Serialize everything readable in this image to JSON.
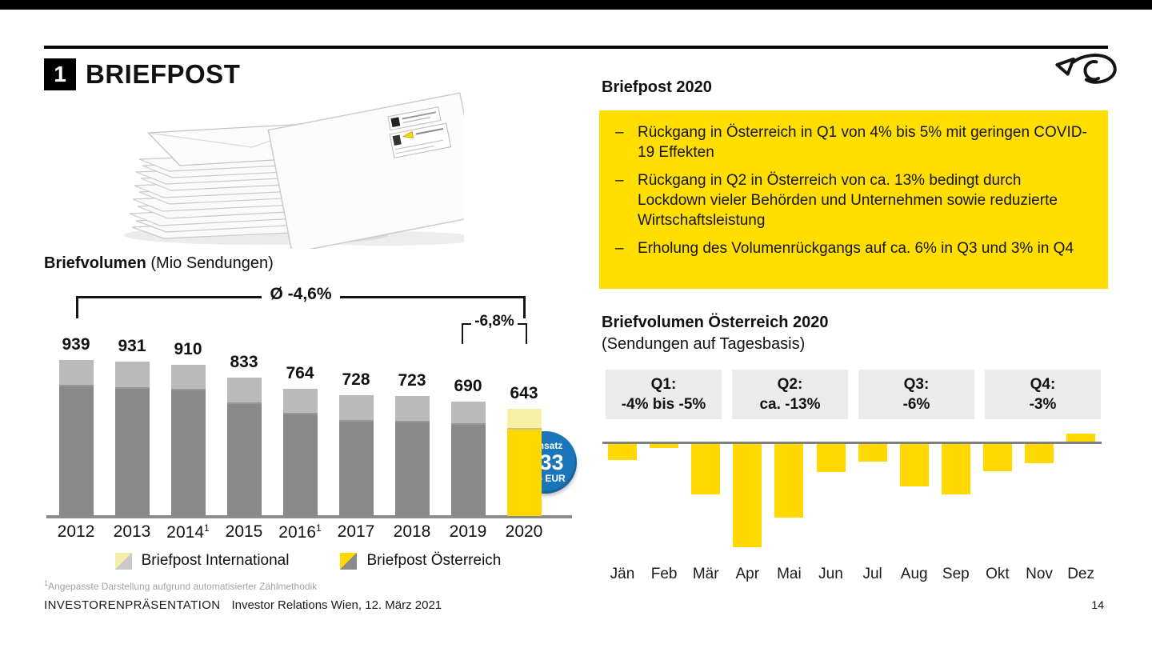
{
  "header": {
    "badge_number": "1",
    "title": "BRIEFPOST",
    "logo": "oesterreichische-post-horn-logo"
  },
  "left": {
    "chart_title_bold": "Briefvolumen",
    "chart_title_rest": " (Mio Sendungen)",
    "avg_bracket_label": "Ø -4,6%",
    "recent_bracket_label": "-6,8%",
    "revenue_badge": {
      "line1": "Umsatz",
      "value": "733",
      "line3": "Mio EUR"
    },
    "legend": [
      {
        "label": "Briefpost International",
        "swatch": [
          "#f3eda6",
          "#c9c9c9"
        ]
      },
      {
        "label": "Briefpost Österreich",
        "swatch": [
          "#ffd800",
          "#8a8a8a"
        ]
      }
    ],
    "footnote_sup": "1",
    "footnote": "Angepasste Darstellung aufgrund automatisierter Zählmethodik",
    "footer_left": "INVESTORENPRÄSENTATION",
    "footer_right": "Investor Relations Wien, 12. März 2021"
  },
  "right": {
    "box_title": "Briefpost 2020",
    "bullets": [
      "Rückgang in Österreich in Q1 von 4% bis 5% mit geringen COVID-19 Effekten",
      "Rückgang in Q2 in Österreich von ca. 13% bedingt durch Lockdown vieler Behörden und Unternehmen sowie reduzierte Wirtschaftsleistung",
      "Erholung des Volumenrückgangs auf ca. 6% in Q3 und 3% in Q4"
    ],
    "monthly_title": "Briefvolumen Österreich 2020",
    "monthly_subtitle": "(Sendungen auf Tagesbasis)",
    "quarters": [
      {
        "q": "Q1:",
        "v": "-4% bis -5%"
      },
      {
        "q": "Q2:",
        "v": "ca. -13%"
      },
      {
        "q": "Q3:",
        "v": "-6%"
      },
      {
        "q": "Q4:",
        "v": "-3%"
      }
    ]
  },
  "page_number": "14",
  "colors": {
    "post_yellow": "#ffd800",
    "pale_yellow": "#f7efa3",
    "bar_light_gray": "#bababa",
    "bar_dark_gray": "#898989",
    "callout_yellow": "#ffde00",
    "quarter_box_gray": "#ebebeb",
    "axis_gray": "#8c8c8c",
    "badge_blue": "#1b75bb"
  },
  "chart_data": [
    {
      "type": "bar",
      "stacked": true,
      "title": "Briefvolumen (Mio Sendungen)",
      "categories": [
        "2012",
        "2013",
        "2014",
        "2015",
        "2016",
        "2017",
        "2018",
        "2019",
        "2020"
      ],
      "footnote_marked_categories": [
        "2014",
        "2016"
      ],
      "totals": [
        939,
        931,
        910,
        833,
        764,
        728,
        723,
        690,
        643
      ],
      "series": [
        {
          "name": "Briefpost Österreich",
          "values": [
            790,
            777,
            766,
            684,
            620,
            579,
            574,
            560,
            532
          ]
        },
        {
          "name": "Briefpost International",
          "values": [
            149,
            154,
            144,
            149,
            144,
            149,
            149,
            130,
            111
          ]
        }
      ],
      "value_labels": true,
      "legend_position": "bottom",
      "annotations": {
        "average_2012_2020": "Ø -4,6%",
        "change_2019_2020": "-6,8%",
        "revenue_2020": "Umsatz 733 Mio EUR"
      },
      "highlight_category": "2020"
    },
    {
      "type": "bar",
      "title": "Briefvolumen Österreich 2020 (Sendungen auf Tagesbasis)",
      "categories": [
        "Jän",
        "Feb",
        "Mär",
        "Apr",
        "Mai",
        "Jun",
        "Jul",
        "Aug",
        "Sep",
        "Okt",
        "Nov",
        "Dez"
      ],
      "values": [
        -2.2,
        -0.5,
        -6.8,
        -14,
        -10,
        -3.8,
        -2.4,
        -5.8,
        -6.8,
        -3.7,
        -2.6,
        1.1
      ],
      "unit": "%",
      "quarter_callouts": [
        "Q1: -4% bis -5%",
        "Q2: ca. -13%",
        "Q3: -6%",
        "Q4: -3%"
      ],
      "baseline": 0,
      "grid": false,
      "legend_position": "none"
    }
  ]
}
